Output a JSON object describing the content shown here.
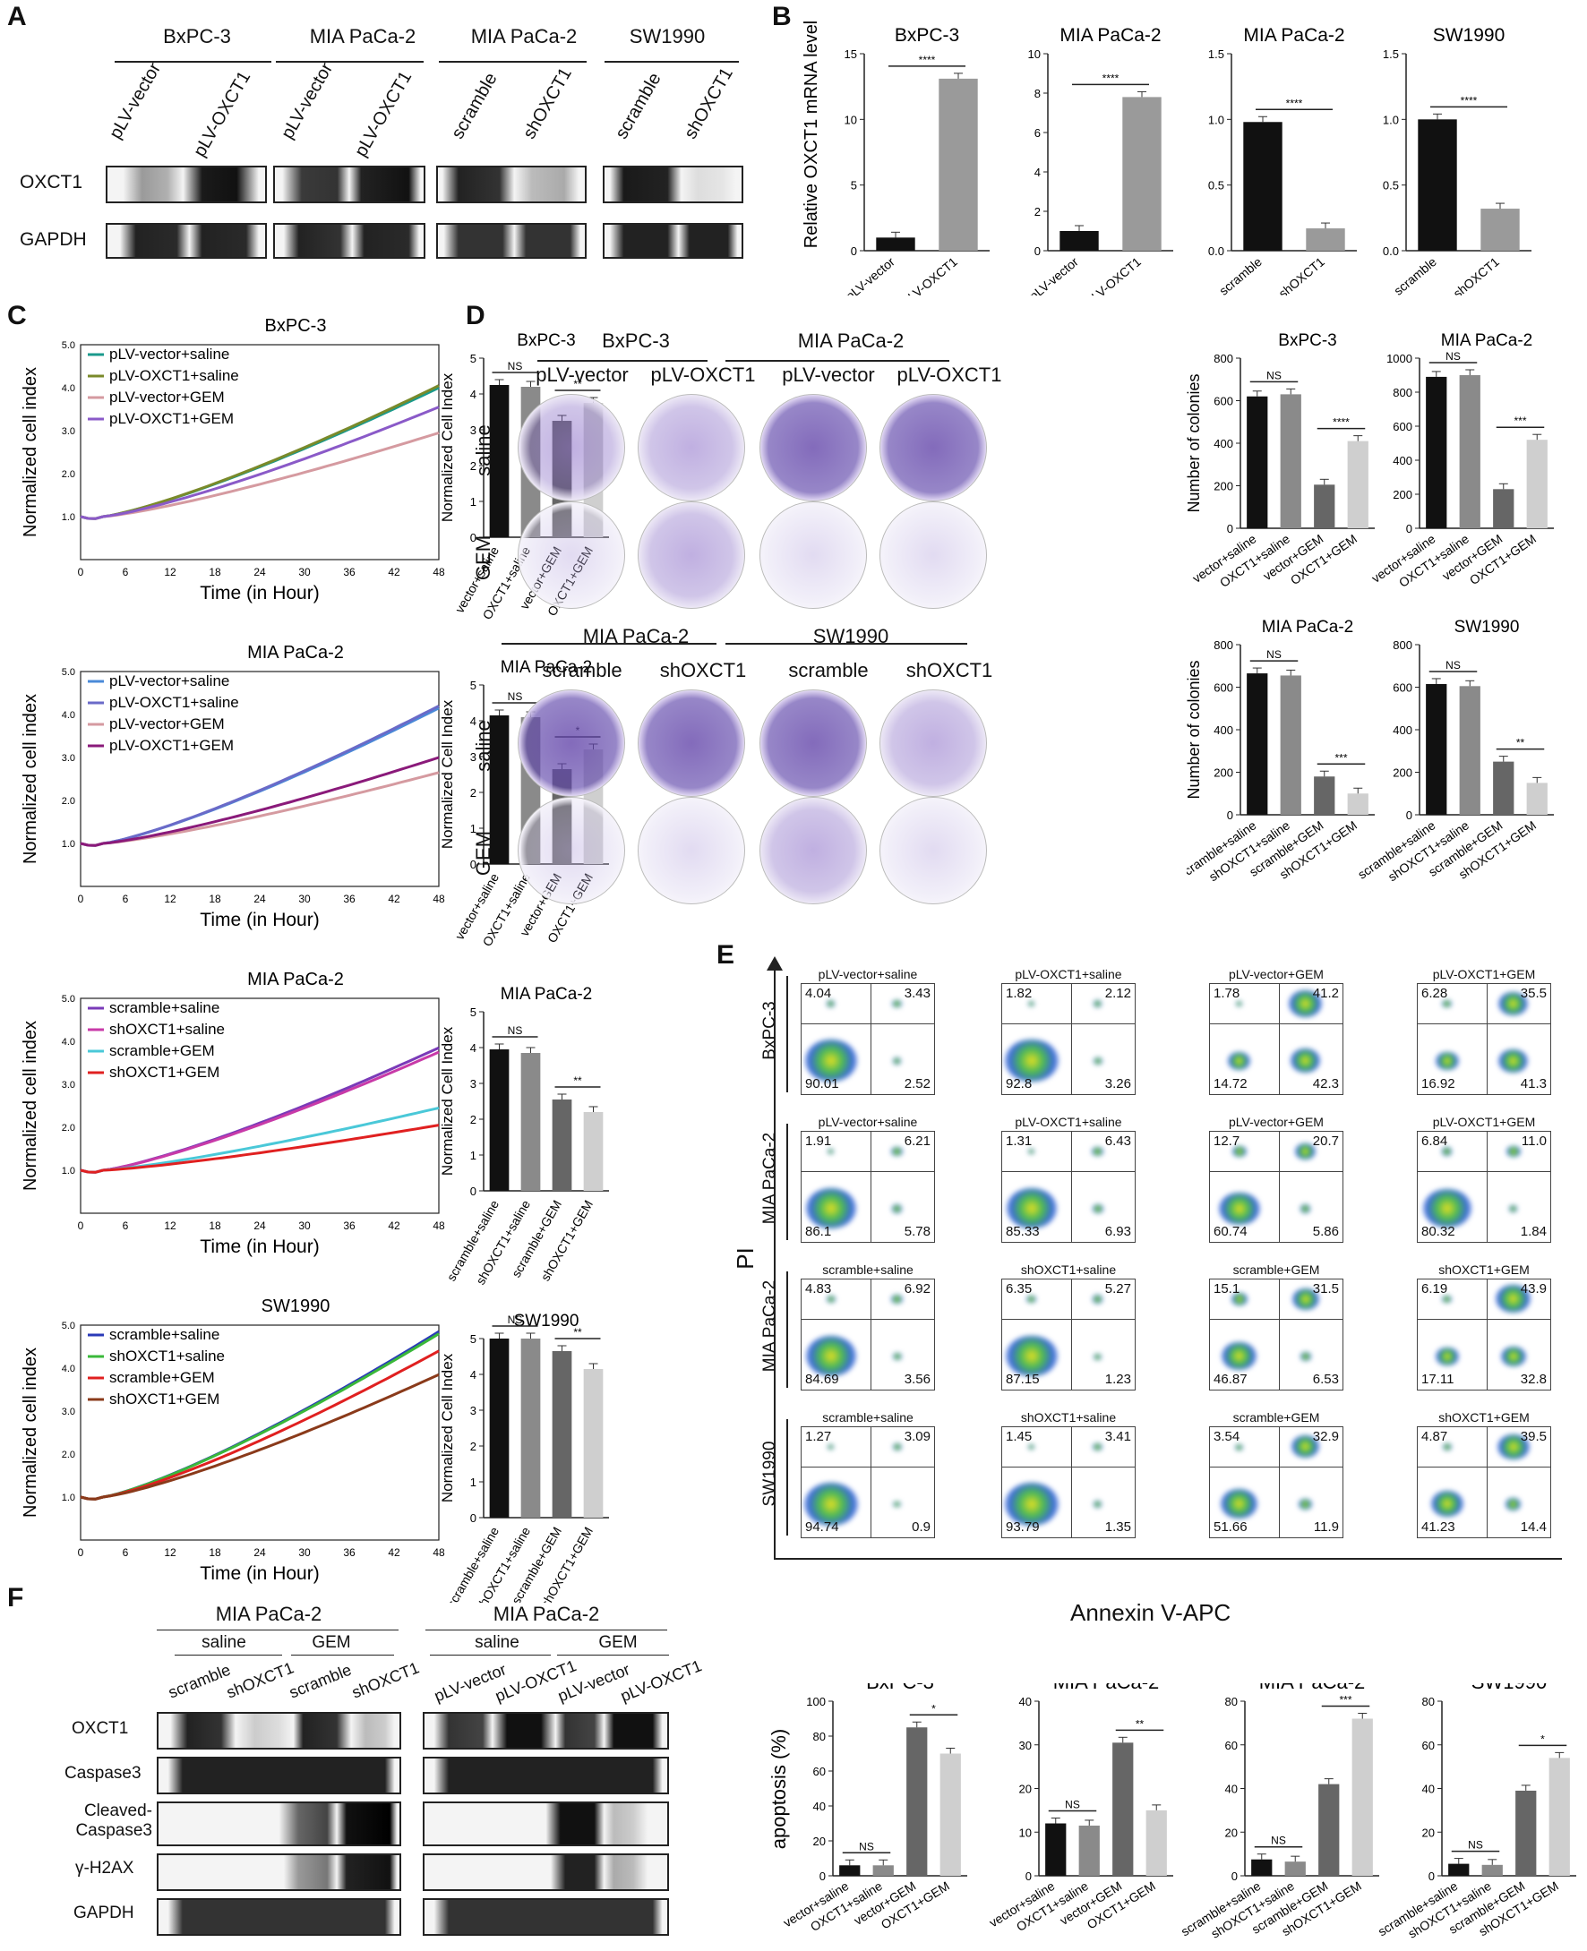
{
  "panels": {
    "A": "A",
    "B": "B",
    "C": "C",
    "D": "D",
    "E": "E",
    "F": "F"
  },
  "panelA": {
    "groups": [
      "BxPC-3",
      "MIA PaCa-2",
      "MIA PaCa-2",
      "SW1990"
    ],
    "lanes": [
      "pLV-vector",
      "pLV-OXCT1",
      "pLV-vector",
      "pLV-OXCT1",
      "scramble",
      "shOXCT1",
      "scramble",
      "shOXCT1"
    ],
    "rows": [
      "OXCT1",
      "GAPDH"
    ]
  },
  "panelB": {
    "ylabel": "Relative OXCT1 mRNA level",
    "charts": [
      {
        "title": "BxPC-3",
        "cats": [
          "pLV-vector",
          "pLV-OXCT1"
        ],
        "values": [
          1.0,
          13.1
        ],
        "ymax": 15,
        "ticks": [
          "0",
          "5",
          "10",
          "15"
        ],
        "sig": "****"
      },
      {
        "title": "MIA PaCa-2",
        "cats": [
          "pLV-vector",
          "pLV-OXCT1"
        ],
        "values": [
          1.0,
          7.8
        ],
        "ymax": 10,
        "ticks": [
          "0",
          "2",
          "4",
          "6",
          "8",
          "10"
        ],
        "sig": "****"
      },
      {
        "title": "MIA PaCa-2",
        "cats": [
          "scramble",
          "shOXCT1"
        ],
        "values": [
          0.98,
          0.17
        ],
        "ymax": 1.5,
        "ticks": [
          "0.0",
          "0.5",
          "1.0",
          "1.5"
        ],
        "sig": "****"
      },
      {
        "title": "SW1990",
        "cats": [
          "scramble",
          "shOXCT1"
        ],
        "values": [
          1.0,
          0.32
        ],
        "ymax": 1.5,
        "ticks": [
          "0.0",
          "0.5",
          "1.0",
          "1.5"
        ],
        "sig": "****"
      }
    ]
  },
  "panelC": {
    "xlabel": "Time (in Hour)",
    "ylabel": "Normalized cell index",
    "bar_ylabel": "Normalized Cell Index",
    "xticks": [
      "0",
      "6",
      "12",
      "18",
      "24",
      "30",
      "36",
      "42",
      "48"
    ],
    "yticks": [
      "1.0",
      "2.0",
      "3.0",
      "4.0",
      "5.0"
    ],
    "bar_yticks": [
      "0",
      "1",
      "2",
      "3",
      "4",
      "5"
    ],
    "rows": [
      {
        "title": "BxPC-3",
        "bar_title": "BxPC-3",
        "legend": [
          "pLV-vector+saline",
          "pLV-OXCT1+saline",
          "pLV-vector+GEM",
          "pLV-OXCT1+GEM"
        ],
        "colors": [
          "#1a9a8c",
          "#7a8a2a",
          "#d59aa0",
          "#8a5ac8"
        ],
        "end": [
          4.0,
          4.05,
          2.95,
          3.55
        ],
        "bar_cats": [
          "vector+saline",
          "OXCT1+saline",
          "vector+GEM",
          "OXCT1+GEM"
        ],
        "bar_values": [
          4.25,
          4.2,
          3.25,
          3.75
        ],
        "sig1": "NS",
        "sig2": "**"
      },
      {
        "title": "MIA PaCa-2",
        "bar_title": "MIA PaCa-2",
        "legend": [
          "pLV-vector+saline",
          "pLV-OXCT1+saline",
          "pLV-vector+GEM",
          "pLV-OXCT1+GEM"
        ],
        "colors": [
          "#4a8ad8",
          "#6a6ac8",
          "#d59aa0",
          "#8a1a7a"
        ],
        "end": [
          4.15,
          4.2,
          2.65,
          3.0
        ],
        "bar_cats": [
          "vector+saline",
          "OXCT1+saline",
          "vector+GEM",
          "OXCT1+GEM"
        ],
        "bar_values": [
          4.15,
          4.1,
          2.65,
          3.2
        ],
        "sig1": "NS",
        "sig2": "*"
      },
      {
        "title": "MIA PaCa-2",
        "bar_title": "MIA PaCa-2",
        "legend": [
          "scramble+saline",
          "shOXCT1+saline",
          "scramble+GEM",
          "shOXCT1+GEM"
        ],
        "colors": [
          "#7a3ab8",
          "#c83aa8",
          "#4ac8d8",
          "#e02020"
        ],
        "end": [
          3.85,
          3.75,
          2.45,
          2.05
        ],
        "bar_cats": [
          "scramble+saline",
          "shOXCT1+saline",
          "scramble+GEM",
          "shOXCT1+GEM"
        ],
        "bar_values": [
          3.95,
          3.85,
          2.55,
          2.2
        ],
        "sig1": "NS",
        "sig2": "**"
      },
      {
        "title": "SW1990",
        "bar_title": "SW1990",
        "legend": [
          "scramble+saline",
          "shOXCT1+saline",
          "scramble+GEM",
          "shOXCT1+GEM"
        ],
        "colors": [
          "#2a3ab8",
          "#3ab83a",
          "#e02020",
          "#8a3a1a"
        ],
        "end": [
          4.85,
          4.8,
          4.4,
          3.85
        ],
        "bar_cats": [
          "scramble+saline",
          "shOXCT1+saline",
          "scramble+GEM",
          "shOXCT1+GEM"
        ],
        "bar_values": [
          5.2,
          5.25,
          4.65,
          4.15
        ],
        "sig1": "NS",
        "sig2": "**"
      }
    ]
  },
  "panelD": {
    "top_groups": [
      "BxPC-3",
      "MIA PaCa-2"
    ],
    "top_cols": [
      "pLV-vector",
      "pLV-OXCT1",
      "pLV-vector",
      "pLV-OXCT1"
    ],
    "bottom_groups": [
      "MIA PaCa-2",
      "SW1990"
    ],
    "bottom_cols": [
      "scramble",
      "shOXCT1",
      "scramble",
      "shOXCT1"
    ],
    "rows": [
      "saline",
      "GEM"
    ],
    "ylabel": "Number of colonies",
    "charts": [
      {
        "title": "BxPC-3",
        "cats": [
          "vector+saline",
          "OXCT1+saline",
          "vector+GEM",
          "OXCT1+GEM"
        ],
        "values": [
          620,
          630,
          205,
          410
        ],
        "ticks": [
          "0",
          "200",
          "400",
          "600",
          "800"
        ],
        "sig1": "NS",
        "sig2": "****"
      },
      {
        "title": "MIA PaCa-2",
        "cats": [
          "vector+saline",
          "OXCT1+saline",
          "vector+GEM",
          "OXCT1+GEM"
        ],
        "values": [
          890,
          900,
          230,
          520
        ],
        "ticks": [
          "0",
          "200",
          "400",
          "600",
          "800",
          "1000"
        ],
        "sig1": "NS",
        "sig2": "***"
      },
      {
        "title": "MIA PaCa-2",
        "cats": [
          "scramble+saline",
          "shOXCT1+saline",
          "scramble+GEM",
          "shOXCT1+GEM"
        ],
        "values": [
          665,
          655,
          180,
          100
        ],
        "ticks": [
          "0",
          "200",
          "400",
          "600",
          "800"
        ],
        "sig1": "NS",
        "sig2": "***"
      },
      {
        "title": "SW1990",
        "cats": [
          "scramble+saline",
          "shOXCT1+saline",
          "scramble+GEM",
          "shOXCT1+GEM"
        ],
        "values": [
          615,
          605,
          250,
          150
        ],
        "ticks": [
          "0",
          "200",
          "400",
          "600",
          "800"
        ],
        "sig1": "NS",
        "sig2": "**"
      }
    ]
  },
  "panelE": {
    "ylabel": "PI",
    "xlabel": "Annexin V-APC",
    "row_labels": [
      "BxPC-3",
      "MIA PaCa-2",
      "MIA PaCa-2",
      "SW1990"
    ],
    "grid": [
      [
        {
          "title": "pLV-vector+saline",
          "q": [
            "4.04",
            "3.43",
            "90.01",
            "2.52"
          ]
        },
        {
          "title": "pLV-OXCT1+saline",
          "q": [
            "1.82",
            "2.12",
            "92.8",
            "3.26"
          ]
        },
        {
          "title": "pLV-vector+GEM",
          "q": [
            "1.78",
            "41.2",
            "14.72",
            "42.3"
          ]
        },
        {
          "title": "pLV-OXCT1+GEM",
          "q": [
            "6.28",
            "35.5",
            "16.92",
            "41.3"
          ]
        }
      ],
      [
        {
          "title": "pLV-vector+saline",
          "q": [
            "1.91",
            "6.21",
            "86.1",
            "5.78"
          ]
        },
        {
          "title": "pLV-OXCT1+saline",
          "q": [
            "1.31",
            "6.43",
            "85.33",
            "6.93"
          ]
        },
        {
          "title": "pLV-vector+GEM",
          "q": [
            "12.7",
            "20.7",
            "60.74",
            "5.86"
          ]
        },
        {
          "title": "pLV-OXCT1+GEM",
          "q": [
            "6.84",
            "11.0",
            "80.32",
            "1.84"
          ]
        }
      ],
      [
        {
          "title": "scramble+saline",
          "q": [
            "4.83",
            "6.92",
            "84.69",
            "3.56"
          ]
        },
        {
          "title": "shOXCT1+saline",
          "q": [
            "6.35",
            "5.27",
            "87.15",
            "1.23"
          ]
        },
        {
          "title": "scramble+GEM",
          "q": [
            "15.1",
            "31.5",
            "46.87",
            "6.53"
          ]
        },
        {
          "title": "shOXCT1+GEM",
          "q": [
            "6.19",
            "43.9",
            "17.11",
            "32.8"
          ]
        }
      ],
      [
        {
          "title": "scramble+saline",
          "q": [
            "1.27",
            "3.09",
            "94.74",
            "0.9"
          ]
        },
        {
          "title": "shOXCT1+saline",
          "q": [
            "1.45",
            "3.41",
            "93.79",
            "1.35"
          ]
        },
        {
          "title": "scramble+GEM",
          "q": [
            "3.54",
            "32.9",
            "51.66",
            "11.9"
          ]
        },
        {
          "title": "shOXCT1+GEM",
          "q": [
            "4.87",
            "39.5",
            "41.23",
            "14.4"
          ]
        }
      ]
    ]
  },
  "panelF": {
    "groups": [
      "MIA PaCa-2",
      "MIA PaCa-2"
    ],
    "subgroups": [
      "saline",
      "GEM",
      "saline",
      "GEM"
    ],
    "lanes_left": [
      "scramble",
      "shOXCT1",
      "scramble",
      "shOXCT1"
    ],
    "lanes_right": [
      "pLV-vector",
      "pLV-OXCT1",
      "pLV-vector",
      "pLV-OXCT1"
    ],
    "rows": [
      "OXCT1",
      "Caspase3",
      "Cleaved-\nCaspase3",
      "γ-H2AX",
      "GAPDH"
    ]
  },
  "apoptosis": {
    "ylabel": "apoptosis (%)",
    "charts": [
      {
        "title": "BxPC-3",
        "cats": [
          "vector+saline",
          "OXCT1+saline",
          "vector+GEM",
          "OXCT1+GEM"
        ],
        "values": [
          6,
          6,
          85,
          70
        ],
        "ticks": [
          "0",
          "20",
          "40",
          "60",
          "80",
          "100"
        ],
        "sig1": "NS",
        "sig2": "*"
      },
      {
        "title": "MIA PaCa-2",
        "cats": [
          "vector+saline",
          "OXCT1+saline",
          "vector+GEM",
          "OXCT1+GEM"
        ],
        "values": [
          12,
          11.5,
          30.5,
          15
        ],
        "ticks": [
          "0",
          "10",
          "20",
          "30",
          "40"
        ],
        "sig1": "NS",
        "sig2": "**"
      },
      {
        "title": "MIA PaCa-2",
        "cats": [
          "scramble+saline",
          "shOXCT1+saline",
          "scramble+GEM",
          "shOXCT1+GEM"
        ],
        "values": [
          7.5,
          6.5,
          42,
          72
        ],
        "ticks": [
          "0",
          "20",
          "40",
          "60",
          "80"
        ],
        "sig1": "NS",
        "sig2": "***"
      },
      {
        "title": "SW1990",
        "cats": [
          "scramble+saline",
          "shOXCT1+saline",
          "scramble+GEM",
          "shOXCT1+GEM"
        ],
        "values": [
          5.5,
          5,
          39,
          54
        ],
        "ticks": [
          "0",
          "20",
          "40",
          "60",
          "80"
        ],
        "sig1": "NS",
        "sig2": "*"
      }
    ]
  },
  "chart_data": [
    {
      "type": "bar",
      "title": "BxPC-3",
      "categories": [
        "pLV-vector",
        "pLV-OXCT1"
      ],
      "values": [
        1.0,
        13.1
      ],
      "ylabel": "Relative OXCT1 mRNA level",
      "ylim": [
        0,
        15
      ]
    },
    {
      "type": "bar",
      "title": "MIA PaCa-2",
      "categories": [
        "pLV-vector",
        "pLV-OXCT1"
      ],
      "values": [
        1.0,
        7.8
      ],
      "ylim": [
        0,
        10
      ]
    },
    {
      "type": "bar",
      "title": "MIA PaCa-2",
      "categories": [
        "scramble",
        "shOXCT1"
      ],
      "values": [
        0.98,
        0.17
      ],
      "ylim": [
        0,
        1.5
      ]
    },
    {
      "type": "bar",
      "title": "SW1990",
      "categories": [
        "scramble",
        "shOXCT1"
      ],
      "values": [
        1.0,
        0.32
      ],
      "ylim": [
        0,
        1.5
      ]
    },
    {
      "type": "line",
      "title": "BxPC-3",
      "xlabel": "Time (in Hour)",
      "ylabel": "Normalized cell index",
      "xlim": [
        0,
        48
      ],
      "ylim": [
        0,
        5
      ],
      "series": [
        {
          "name": "pLV-vector+saline",
          "end": 4.0
        },
        {
          "name": "pLV-OXCT1+saline",
          "end": 4.05
        },
        {
          "name": "pLV-vector+GEM",
          "end": 2.95
        },
        {
          "name": "pLV-OXCT1+GEM",
          "end": 3.55
        }
      ]
    },
    {
      "type": "bar",
      "title": "BxPC-3",
      "categories": [
        "vector+saline",
        "OXCT1+saline",
        "vector+GEM",
        "OXCT1+GEM"
      ],
      "values": [
        4.25,
        4.2,
        3.25,
        3.75
      ],
      "ylim": [
        0,
        5
      ]
    }
  ]
}
